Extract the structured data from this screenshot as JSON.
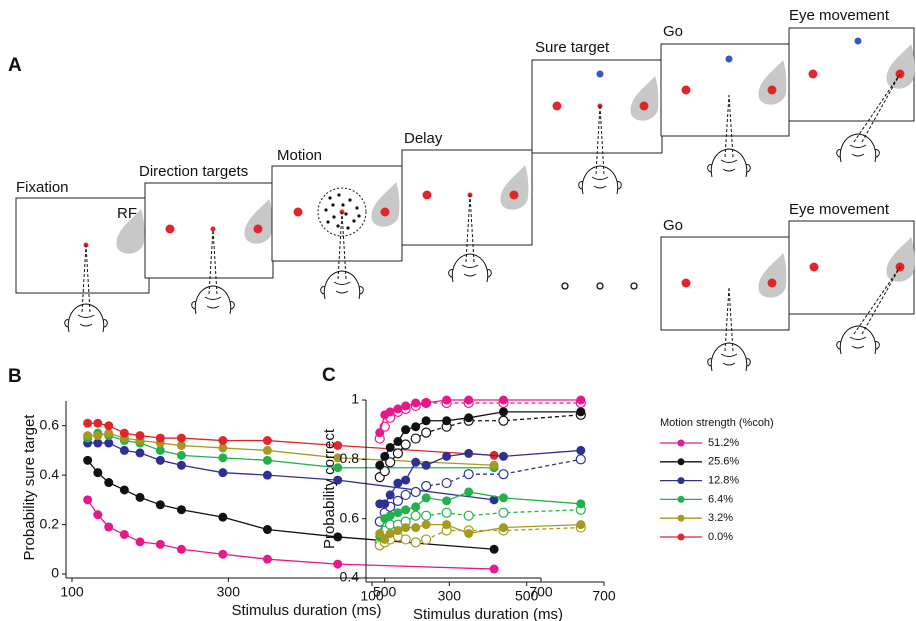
{
  "panel_a": {
    "label": "A",
    "rf_label": "RF",
    "frames": [
      {
        "title": "Fixation"
      },
      {
        "title": "Direction targets"
      },
      {
        "title": "Motion"
      },
      {
        "title": "Delay"
      },
      {
        "title": "Sure target"
      },
      {
        "title": "Go"
      },
      {
        "title": "Eye movement"
      },
      {
        "title": "Go"
      },
      {
        "title": "Eye movement"
      }
    ]
  },
  "chart_data": [
    {
      "type": "line",
      "panel_label": "B",
      "x_label": "Stimulus duration (ms)",
      "y_label": "Probability sure target",
      "legend_title": "Motion strength (%coh)",
      "x": [
        120,
        133,
        147,
        167,
        187,
        213,
        240,
        293,
        350,
        440,
        640
      ],
      "xlim": [
        100,
        700
      ],
      "xticks": [
        100,
        300,
        500,
        700
      ],
      "ylim": [
        0,
        0.7
      ],
      "yticks": [
        0,
        0.2,
        0.4,
        0.6
      ],
      "series": [
        {
          "name": "51.2%",
          "color": "#e8178a",
          "values": [
            0.3,
            0.24,
            0.19,
            0.16,
            0.13,
            0.12,
            0.1,
            0.08,
            0.06,
            0.04,
            0.02
          ]
        },
        {
          "name": "25.6%",
          "color": "#111111",
          "values": [
            0.46,
            0.41,
            0.37,
            0.34,
            0.31,
            0.28,
            0.26,
            0.23,
            0.18,
            0.15,
            0.1
          ]
        },
        {
          "name": "12.8%",
          "color": "#2e3192",
          "values": [
            0.53,
            0.53,
            0.53,
            0.5,
            0.49,
            0.46,
            0.44,
            0.41,
            0.4,
            0.38,
            0.3
          ]
        },
        {
          "name": "6.4%",
          "color": "#22b24c",
          "values": [
            0.55,
            0.57,
            0.56,
            0.54,
            0.53,
            0.5,
            0.48,
            0.47,
            0.46,
            0.43,
            0.43
          ]
        },
        {
          "name": "3.2%",
          "color": "#a59a1f",
          "values": [
            0.56,
            0.56,
            0.57,
            0.55,
            0.54,
            0.53,
            0.52,
            0.51,
            0.5,
            0.47,
            0.44
          ]
        },
        {
          "name": "0.0%",
          "color": "#e0262b",
          "values": [
            0.61,
            0.61,
            0.6,
            0.57,
            0.56,
            0.55,
            0.55,
            0.54,
            0.54,
            0.52,
            0.48
          ]
        }
      ]
    },
    {
      "type": "line",
      "panel_label": "C",
      "x_label": "Stimulus duration (ms)",
      "y_label": "Probability correct",
      "x": [
        120,
        133,
        147,
        167,
        187,
        213,
        240,
        293,
        350,
        440,
        640
      ],
      "xlim": [
        100,
        700
      ],
      "xticks": [
        100,
        300,
        500,
        700
      ],
      "ylim": [
        0.4,
        1
      ],
      "yticks": [
        0.4,
        0.6,
        0.8,
        1
      ],
      "series": [
        {
          "color": "#e8178a",
          "values": [
            0.89,
            0.95,
            0.96,
            0.97,
            0.98,
            0.99,
            0.99,
            1.0,
            1.0,
            1.0,
            1.0
          ],
          "open_values": [
            0.87,
            0.91,
            0.94,
            0.96,
            0.97,
            0.98,
            0.99,
            0.99,
            0.99,
            0.99,
            0.99
          ]
        },
        {
          "color": "#111111",
          "values": [
            0.78,
            0.81,
            0.84,
            0.86,
            0.9,
            0.91,
            0.93,
            0.93,
            0.94,
            0.96,
            0.96
          ],
          "open_values": [
            0.74,
            0.76,
            0.79,
            0.82,
            0.85,
            0.87,
            0.89,
            0.91,
            0.93,
            0.93,
            0.95
          ]
        },
        {
          "color": "#2e3192",
          "values": [
            0.65,
            0.65,
            0.68,
            0.72,
            0.73,
            0.79,
            0.78,
            0.81,
            0.82,
            0.81,
            0.83
          ],
          "open_values": [
            0.59,
            0.62,
            0.64,
            0.66,
            0.68,
            0.69,
            0.71,
            0.72,
            0.75,
            0.75,
            0.8
          ]
        },
        {
          "color": "#22b24c",
          "values": [
            0.54,
            0.6,
            0.61,
            0.62,
            0.63,
            0.64,
            0.67,
            0.66,
            0.69,
            0.67,
            0.65
          ],
          "open_values": [
            0.52,
            0.56,
            0.58,
            0.58,
            0.59,
            0.61,
            0.61,
            0.62,
            0.61,
            0.62,
            0.63
          ]
        },
        {
          "color": "#a59a1f",
          "values": [
            0.55,
            0.53,
            0.55,
            0.56,
            0.57,
            0.57,
            0.58,
            0.58,
            0.55,
            0.57,
            0.58
          ],
          "open_values": [
            0.51,
            0.52,
            0.53,
            0.54,
            0.53,
            0.52,
            0.53,
            0.56,
            0.56,
            0.56,
            0.57
          ]
        }
      ]
    }
  ]
}
